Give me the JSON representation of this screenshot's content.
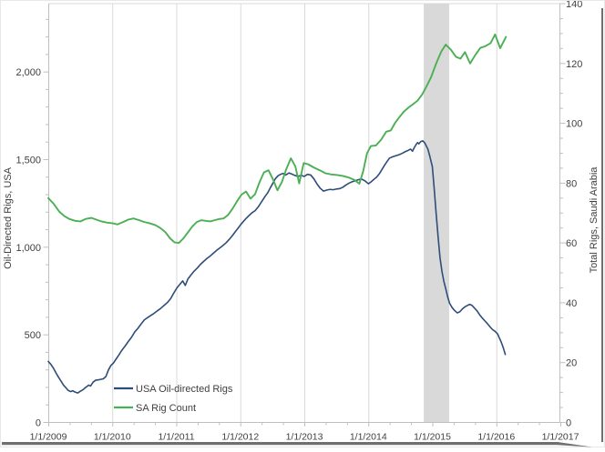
{
  "axes": {
    "left": {
      "title": "Oil-Directed Rigs, USA",
      "tick_labels": [
        "0",
        "500",
        "1,000",
        "1,500",
        "2,000"
      ],
      "tick_values": [
        0,
        500,
        1000,
        1500,
        2000
      ]
    },
    "right": {
      "title": "Total Rigs, Saudi Arabia",
      "tick_labels": [
        "0",
        "20",
        "40",
        "60",
        "80",
        "100",
        "120",
        "140"
      ],
      "tick_values": [
        0,
        20,
        40,
        60,
        80,
        100,
        120,
        140
      ]
    },
    "x": {
      "tick_labels": [
        "1/1/2009",
        "1/1/2010",
        "1/1/2011",
        "1/1/2012",
        "1/1/2013",
        "1/1/2014",
        "1/1/2015",
        "1/1/2016",
        "1/1/2017"
      ],
      "tick_values": [
        2009,
        2010,
        2011,
        2012,
        2013,
        2014,
        2015,
        2016,
        2017
      ]
    }
  },
  "legend": {
    "entries": [
      {
        "label": "USA Oil-directed Rigs",
        "color": "#2e4d78"
      },
      {
        "label": "SA Rig Count",
        "color": "#4bb054"
      }
    ]
  },
  "colors": {
    "gridline": "#d9d9d9",
    "axis_line": "#bfbfbf",
    "tick_text": "#404040",
    "band": "#d9d9d9",
    "shadow": "#6f6f6f"
  },
  "chart_data": {
    "type": "line",
    "title": "",
    "x_range": [
      2009,
      2017
    ],
    "left_range": [
      0,
      2390
    ],
    "right_range": [
      0,
      140
    ],
    "grid": "vertical-only",
    "legend_position": "inside-bottom-left",
    "highlight_band": {
      "x_start": 2014.865,
      "x_end": 2015.263
    },
    "series": [
      {
        "name": "USA Oil-directed Rigs",
        "axis": "left",
        "color": "#2e4d78",
        "width": 1.6,
        "points": [
          [
            2009.0,
            348
          ],
          [
            2009.04,
            332
          ],
          [
            2009.08,
            310
          ],
          [
            2009.12,
            283
          ],
          [
            2009.16,
            258
          ],
          [
            2009.2,
            235
          ],
          [
            2009.24,
            212
          ],
          [
            2009.28,
            196
          ],
          [
            2009.31,
            183
          ],
          [
            2009.35,
            176
          ],
          [
            2009.38,
            181
          ],
          [
            2009.42,
            173
          ],
          [
            2009.46,
            168
          ],
          [
            2009.5,
            178
          ],
          [
            2009.54,
            186
          ],
          [
            2009.57,
            196
          ],
          [
            2009.6,
            204
          ],
          [
            2009.63,
            213
          ],
          [
            2009.66,
            208
          ],
          [
            2009.7,
            230
          ],
          [
            2009.74,
            241
          ],
          [
            2009.78,
            243
          ],
          [
            2009.82,
            246
          ],
          [
            2009.86,
            249
          ],
          [
            2009.9,
            262
          ],
          [
            2009.94,
            300
          ],
          [
            2009.98,
            326
          ],
          [
            2010.02,
            340
          ],
          [
            2010.06,
            362
          ],
          [
            2010.1,
            384
          ],
          [
            2010.15,
            412
          ],
          [
            2010.2,
            436
          ],
          [
            2010.25,
            462
          ],
          [
            2010.3,
            486
          ],
          [
            2010.35,
            516
          ],
          [
            2010.4,
            537
          ],
          [
            2010.45,
            562
          ],
          [
            2010.5,
            585
          ],
          [
            2010.55,
            598
          ],
          [
            2010.6,
            610
          ],
          [
            2010.65,
            622
          ],
          [
            2010.7,
            636
          ],
          [
            2010.75,
            649
          ],
          [
            2010.81,
            668
          ],
          [
            2010.86,
            684
          ],
          [
            2010.91,
            706
          ],
          [
            2010.96,
            738
          ],
          [
            2011.01,
            768
          ],
          [
            2011.06,
            790
          ],
          [
            2011.1,
            808
          ],
          [
            2011.14,
            782
          ],
          [
            2011.18,
            818
          ],
          [
            2011.23,
            842
          ],
          [
            2011.28,
            864
          ],
          [
            2011.33,
            882
          ],
          [
            2011.38,
            903
          ],
          [
            2011.43,
            920
          ],
          [
            2011.48,
            936
          ],
          [
            2011.53,
            950
          ],
          [
            2011.58,
            966
          ],
          [
            2011.63,
            982
          ],
          [
            2011.68,
            996
          ],
          [
            2011.73,
            1010
          ],
          [
            2011.78,
            1026
          ],
          [
            2011.83,
            1046
          ],
          [
            2011.88,
            1068
          ],
          [
            2011.92,
            1088
          ],
          [
            2011.96,
            1106
          ],
          [
            2012.0,
            1126
          ],
          [
            2012.05,
            1148
          ],
          [
            2012.09,
            1164
          ],
          [
            2012.14,
            1182
          ],
          [
            2012.18,
            1196
          ],
          [
            2012.23,
            1208
          ],
          [
            2012.28,
            1230
          ],
          [
            2012.33,
            1258
          ],
          [
            2012.38,
            1286
          ],
          [
            2012.43,
            1312
          ],
          [
            2012.47,
            1340
          ],
          [
            2012.51,
            1366
          ],
          [
            2012.55,
            1392
          ],
          [
            2012.59,
            1408
          ],
          [
            2012.63,
            1416
          ],
          [
            2012.67,
            1421
          ],
          [
            2012.71,
            1412
          ],
          [
            2012.76,
            1424
          ],
          [
            2012.8,
            1418
          ],
          [
            2012.85,
            1410
          ],
          [
            2012.9,
            1404
          ],
          [
            2012.95,
            1410
          ],
          [
            2013.0,
            1404
          ],
          [
            2013.05,
            1416
          ],
          [
            2013.1,
            1412
          ],
          [
            2013.15,
            1390
          ],
          [
            2013.2,
            1360
          ],
          [
            2013.25,
            1336
          ],
          [
            2013.3,
            1320
          ],
          [
            2013.35,
            1326
          ],
          [
            2013.4,
            1330
          ],
          [
            2013.45,
            1328
          ],
          [
            2013.5,
            1332
          ],
          [
            2013.55,
            1334
          ],
          [
            2013.6,
            1342
          ],
          [
            2013.65,
            1355
          ],
          [
            2013.7,
            1366
          ],
          [
            2013.75,
            1374
          ],
          [
            2013.8,
            1380
          ],
          [
            2013.85,
            1386
          ],
          [
            2013.9,
            1388
          ],
          [
            2013.95,
            1378
          ],
          [
            2014.0,
            1362
          ],
          [
            2014.04,
            1372
          ],
          [
            2014.09,
            1388
          ],
          [
            2014.13,
            1400
          ],
          [
            2014.17,
            1418
          ],
          [
            2014.21,
            1442
          ],
          [
            2014.25,
            1466
          ],
          [
            2014.29,
            1488
          ],
          [
            2014.33,
            1508
          ],
          [
            2014.38,
            1516
          ],
          [
            2014.43,
            1522
          ],
          [
            2014.48,
            1528
          ],
          [
            2014.53,
            1536
          ],
          [
            2014.58,
            1546
          ],
          [
            2014.62,
            1552
          ],
          [
            2014.66,
            1560
          ],
          [
            2014.69,
            1548
          ],
          [
            2014.72,
            1570
          ],
          [
            2014.75,
            1588
          ],
          [
            2014.77,
            1597
          ],
          [
            2014.79,
            1590
          ],
          [
            2014.82,
            1603
          ],
          [
            2014.85,
            1607
          ],
          [
            2014.88,
            1596
          ],
          [
            2014.9,
            1582
          ],
          [
            2014.93,
            1560
          ],
          [
            2014.96,
            1520
          ],
          [
            2015.0,
            1460
          ],
          [
            2015.03,
            1330
          ],
          [
            2015.06,
            1190
          ],
          [
            2015.09,
            1060
          ],
          [
            2015.12,
            940
          ],
          [
            2015.15,
            862
          ],
          [
            2015.18,
            805
          ],
          [
            2015.21,
            762
          ],
          [
            2015.24,
            716
          ],
          [
            2015.27,
            680
          ],
          [
            2015.31,
            655
          ],
          [
            2015.35,
            638
          ],
          [
            2015.39,
            625
          ],
          [
            2015.43,
            632
          ],
          [
            2015.47,
            648
          ],
          [
            2015.51,
            660
          ],
          [
            2015.55,
            668
          ],
          [
            2015.58,
            674
          ],
          [
            2015.62,
            668
          ],
          [
            2015.66,
            652
          ],
          [
            2015.7,
            636
          ],
          [
            2015.74,
            614
          ],
          [
            2015.78,
            596
          ],
          [
            2015.82,
            580
          ],
          [
            2015.86,
            564
          ],
          [
            2015.9,
            546
          ],
          [
            2015.94,
            530
          ],
          [
            2015.98,
            520
          ],
          [
            2016.02,
            505
          ],
          [
            2016.05,
            480
          ],
          [
            2016.08,
            455
          ],
          [
            2016.11,
            424
          ],
          [
            2016.14,
            388
          ]
        ]
      },
      {
        "name": "SA Rig Count",
        "axis": "right",
        "color": "#4bb054",
        "width": 1.9,
        "points": [
          [
            2009.0,
            75.0
          ],
          [
            2009.08,
            73.2
          ],
          [
            2009.17,
            70.5
          ],
          [
            2009.25,
            69.0
          ],
          [
            2009.33,
            68.0
          ],
          [
            2009.42,
            67.4
          ],
          [
            2009.5,
            67.2
          ],
          [
            2009.58,
            68.0
          ],
          [
            2009.67,
            68.4
          ],
          [
            2009.75,
            67.8
          ],
          [
            2009.83,
            67.2
          ],
          [
            2009.92,
            66.8
          ],
          [
            2010.0,
            66.6
          ],
          [
            2010.08,
            66.2
          ],
          [
            2010.17,
            67.0
          ],
          [
            2010.25,
            67.8
          ],
          [
            2010.33,
            68.2
          ],
          [
            2010.42,
            67.6
          ],
          [
            2010.5,
            67.0
          ],
          [
            2010.58,
            66.6
          ],
          [
            2010.67,
            66.0
          ],
          [
            2010.75,
            65.0
          ],
          [
            2010.83,
            63.6
          ],
          [
            2010.9,
            61.6
          ],
          [
            2010.97,
            60.2
          ],
          [
            2011.04,
            60.0
          ],
          [
            2011.11,
            61.5
          ],
          [
            2011.18,
            63.5
          ],
          [
            2011.25,
            65.5
          ],
          [
            2011.32,
            67.0
          ],
          [
            2011.39,
            67.6
          ],
          [
            2011.46,
            67.4
          ],
          [
            2011.53,
            67.2
          ],
          [
            2011.6,
            67.6
          ],
          [
            2011.67,
            68.0
          ],
          [
            2011.74,
            68.2
          ],
          [
            2011.81,
            69.4
          ],
          [
            2011.88,
            71.5
          ],
          [
            2011.95,
            74.0
          ],
          [
            2012.02,
            76.2
          ],
          [
            2012.09,
            77.2
          ],
          [
            2012.16,
            74.8
          ],
          [
            2012.23,
            76.3
          ],
          [
            2012.3,
            80.3
          ],
          [
            2012.37,
            83.6
          ],
          [
            2012.44,
            84.3
          ],
          [
            2012.51,
            81.3
          ],
          [
            2012.58,
            77.6
          ],
          [
            2012.65,
            80.4
          ],
          [
            2012.72,
            84.8
          ],
          [
            2012.79,
            88.3
          ],
          [
            2012.86,
            85.6
          ],
          [
            2012.92,
            79.9
          ],
          [
            2012.99,
            86.7
          ],
          [
            2013.06,
            86.3
          ],
          [
            2013.15,
            85.2
          ],
          [
            2013.24,
            84.3
          ],
          [
            2013.33,
            83.3
          ],
          [
            2013.42,
            82.9
          ],
          [
            2013.51,
            82.7
          ],
          [
            2013.6,
            82.4
          ],
          [
            2013.69,
            81.9
          ],
          [
            2013.78,
            81.1
          ],
          [
            2013.86,
            79.8
          ],
          [
            2013.92,
            84.0
          ],
          [
            2013.98,
            90.0
          ],
          [
            2014.04,
            92.4
          ],
          [
            2014.12,
            92.6
          ],
          [
            2014.2,
            94.5
          ],
          [
            2014.28,
            97.2
          ],
          [
            2014.35,
            97.6
          ],
          [
            2014.42,
            100.2
          ],
          [
            2014.49,
            102.2
          ],
          [
            2014.56,
            104.0
          ],
          [
            2014.63,
            105.3
          ],
          [
            2014.7,
            106.4
          ],
          [
            2014.77,
            107.6
          ],
          [
            2014.84,
            109.6
          ],
          [
            2014.91,
            112.4
          ],
          [
            2014.98,
            115.4
          ],
          [
            2015.06,
            120.0
          ],
          [
            2015.14,
            124.0
          ],
          [
            2015.21,
            126.3
          ],
          [
            2015.29,
            124.6
          ],
          [
            2015.37,
            122.2
          ],
          [
            2015.44,
            121.6
          ],
          [
            2015.51,
            123.8
          ],
          [
            2015.59,
            120.0
          ],
          [
            2015.67,
            122.8
          ],
          [
            2015.75,
            125.2
          ],
          [
            2015.83,
            125.8
          ],
          [
            2015.91,
            126.8
          ],
          [
            2015.98,
            129.7
          ],
          [
            2016.06,
            125.1
          ],
          [
            2016.15,
            128.9
          ]
        ]
      }
    ]
  }
}
